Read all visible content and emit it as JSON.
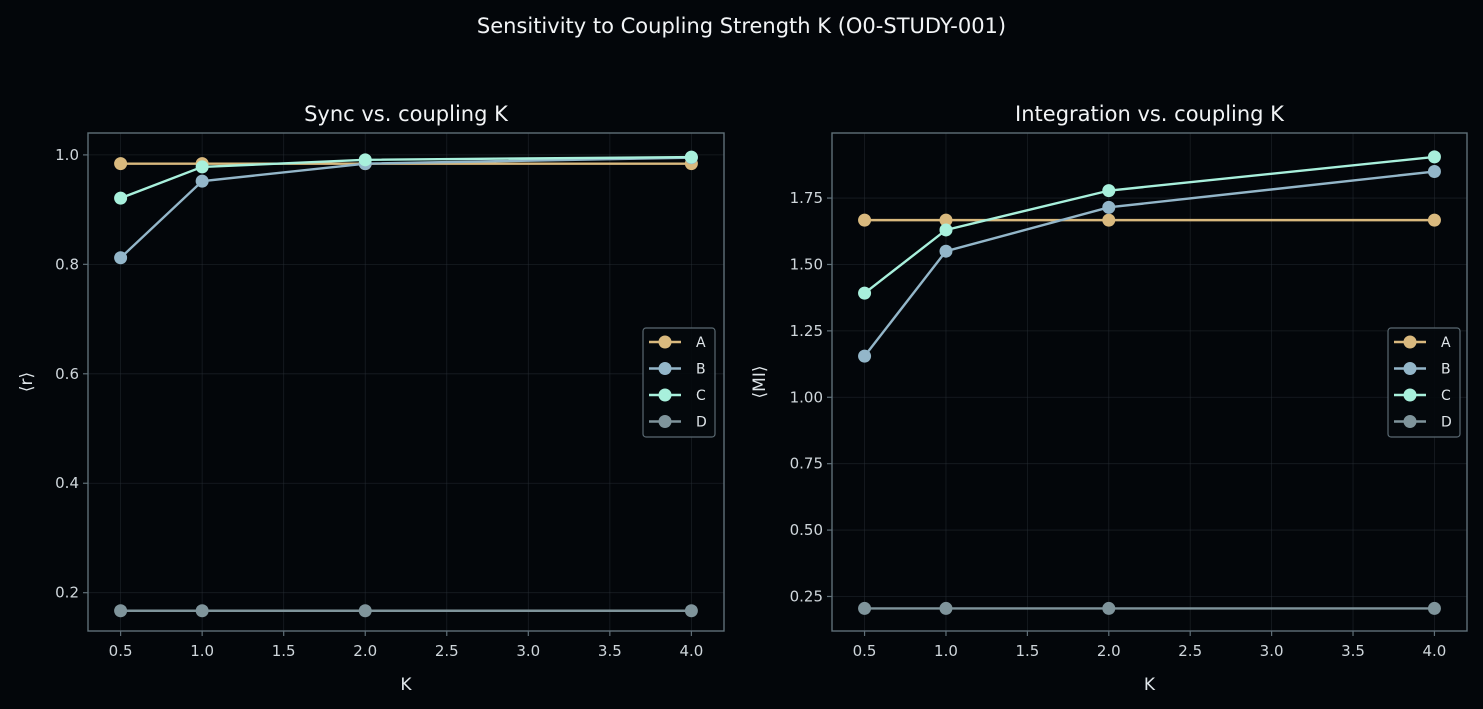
{
  "suptitle": "Sensitivity to Coupling Strength K (O0-STUDY-001)",
  "colors": {
    "background": "#03060a",
    "A": "#d9b97e",
    "B": "#93b6c9",
    "C": "#a8f0dc",
    "D": "#7f949b"
  },
  "chart_data": [
    {
      "type": "line",
      "title": "Sync vs. coupling K",
      "xlabel": "K",
      "ylabel": "⟨r⟩",
      "xlim": [
        0.3,
        4.2
      ],
      "ylim": [
        0.13,
        1.04
      ],
      "xticks": [
        0.5,
        1.0,
        1.5,
        2.0,
        2.5,
        3.0,
        3.5,
        4.0
      ],
      "xtick_labels": [
        "0.5",
        "1.0",
        "1.5",
        "2.0",
        "2.5",
        "3.0",
        "3.5",
        "4.0"
      ],
      "yticks": [
        0.2,
        0.4,
        0.6,
        0.8,
        1.0
      ],
      "ytick_labels": [
        "0.2",
        "0.4",
        "0.6",
        "0.8",
        "1.0"
      ],
      "grid": true,
      "legend": "center-right",
      "x": [
        0.5,
        1.0,
        2.0,
        4.0
      ],
      "series": [
        {
          "name": "A",
          "values": [
            0.984,
            0.984,
            0.984,
            0.984
          ]
        },
        {
          "name": "B",
          "values": [
            0.812,
            0.952,
            0.984,
            0.995
          ]
        },
        {
          "name": "C",
          "values": [
            0.921,
            0.978,
            0.991,
            0.996
          ]
        },
        {
          "name": "D",
          "values": [
            0.167,
            0.167,
            0.167,
            0.167
          ]
        }
      ]
    },
    {
      "type": "line",
      "title": "Integration vs. coupling K",
      "xlabel": "K",
      "ylabel": "⟨MI⟩",
      "xlim": [
        0.3,
        4.2
      ],
      "ylim": [
        0.12,
        1.995
      ],
      "xticks": [
        0.5,
        1.0,
        1.5,
        2.0,
        2.5,
        3.0,
        3.5,
        4.0
      ],
      "xtick_labels": [
        "0.5",
        "1.0",
        "1.5",
        "2.0",
        "2.5",
        "3.0",
        "3.5",
        "4.0"
      ],
      "yticks": [
        0.25,
        0.5,
        0.75,
        1.0,
        1.25,
        1.5,
        1.75
      ],
      "ytick_labels": [
        "0.25",
        "0.50",
        "0.75",
        "1.00",
        "1.25",
        "1.50",
        "1.75"
      ],
      "grid": true,
      "legend": "center-right",
      "x": [
        0.5,
        1.0,
        2.0,
        4.0
      ],
      "series": [
        {
          "name": "A",
          "values": [
            1.667,
            1.667,
            1.667,
            1.667
          ]
        },
        {
          "name": "B",
          "values": [
            1.155,
            1.55,
            1.715,
            1.85
          ]
        },
        {
          "name": "C",
          "values": [
            1.392,
            1.63,
            1.778,
            1.905
          ]
        },
        {
          "name": "D",
          "values": [
            0.205,
            0.205,
            0.205,
            0.205
          ]
        }
      ]
    }
  ]
}
